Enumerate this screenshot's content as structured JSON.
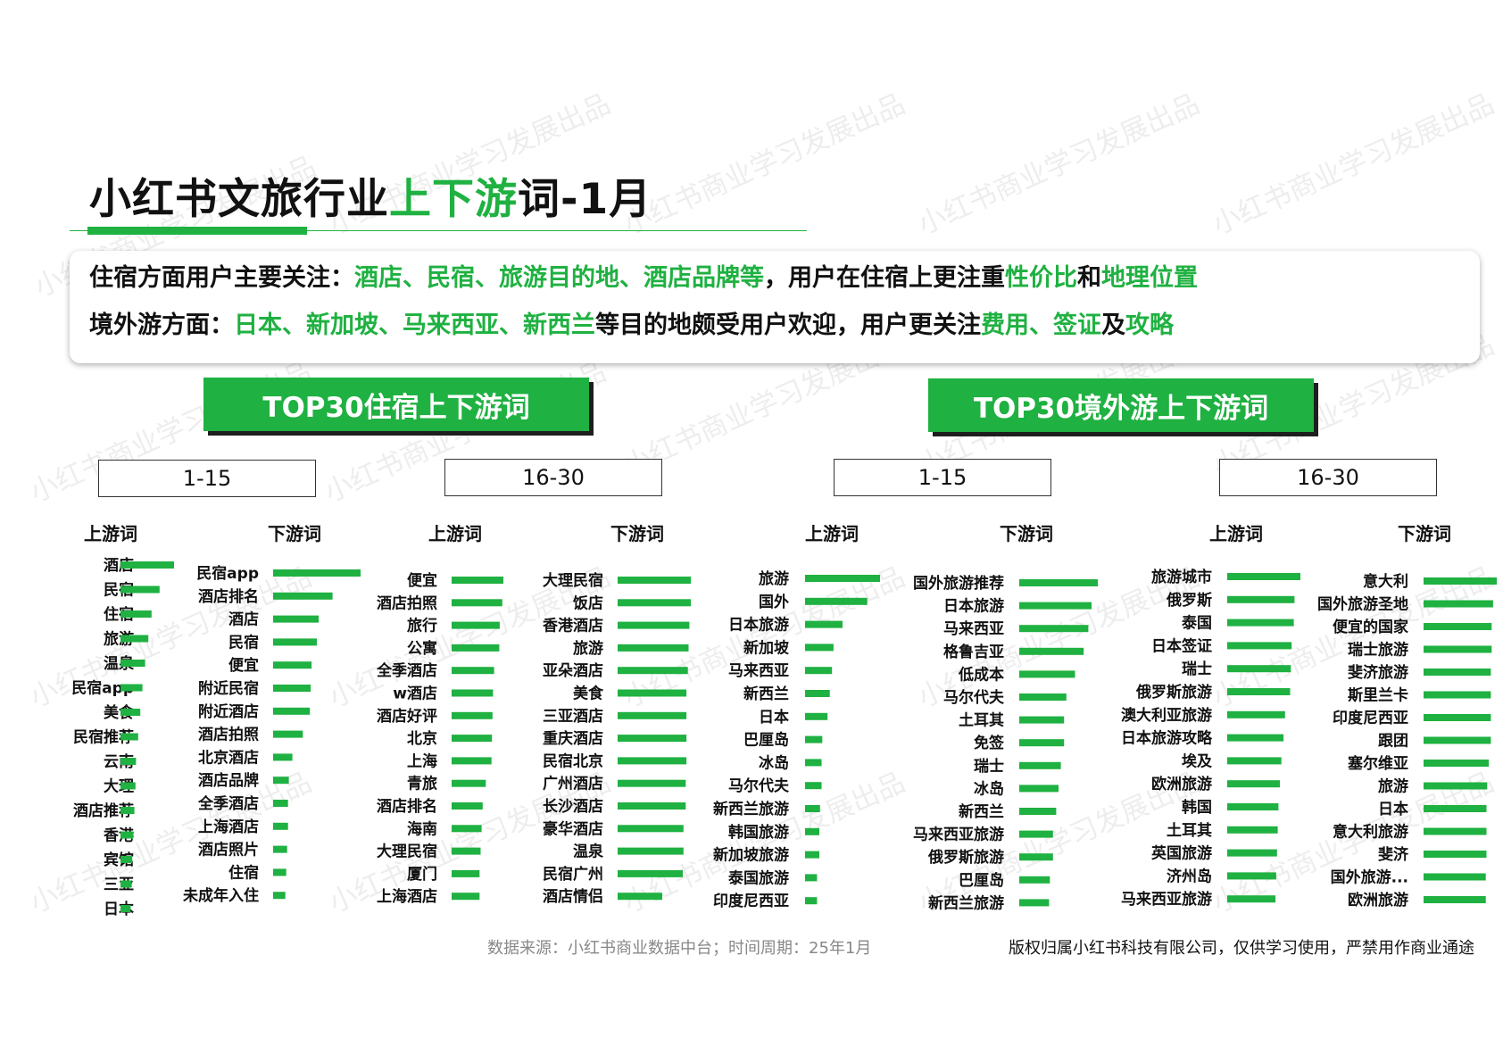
{
  "title": {
    "prefix": "小红书文旅行业",
    "highlight": "上下游",
    "suffix": "词-1月"
  },
  "summary": {
    "line1": [
      {
        "t": "住宿方面用户主要关注：",
        "g": false
      },
      {
        "t": "酒店、民宿、旅游目的地、酒店品牌等",
        "g": true
      },
      {
        "t": "，用户在住宿上更注重",
        "g": false
      },
      {
        "t": "性价比",
        "g": true
      },
      {
        "t": "和",
        "g": false
      },
      {
        "t": "地理位置",
        "g": true
      }
    ],
    "line2": [
      {
        "t": "境外游方面：",
        "g": false
      },
      {
        "t": "日本、新加坡、马来西亚、新西兰",
        "g": true
      },
      {
        "t": "等目的地颇受用户欢迎，用户更关注",
        "g": false
      },
      {
        "t": "费用、签证",
        "g": true
      },
      {
        "t": "及",
        "g": false
      },
      {
        "t": "攻略",
        "g": true
      }
    ]
  },
  "banners": {
    "lodging": "TOP30住宿上下游词",
    "overseas": "TOP30境外游上下游词"
  },
  "ranges": {
    "lodging_a": "1-15",
    "lodging_b": "16-30",
    "overseas_a": "1-15",
    "overseas_b": "16-30"
  },
  "headers": {
    "upstream": "上游词",
    "downstream": "下游词"
  },
  "watermark": "小红书商业学习发展出品",
  "colors": {
    "accent": "#1fb141",
    "bar": "#1fb141"
  },
  "footer": {
    "source": "数据来源：小红书商业数据中台；时间周期：25年1月",
    "copyright": "版权归属小红书科技有限公司，仅供学习使用，严禁用作商业通途"
  },
  "chart_data": [
    {
      "type": "bar",
      "group": "TOP30住宿上下游词",
      "range": "1-15",
      "side": "上游词",
      "categories": [
        "酒店",
        "民宿",
        "住宿",
        "旅游",
        "温泉",
        "民宿app",
        "美食",
        "民宿推荐",
        "云南",
        "大理",
        "酒店推荐",
        "香港",
        "宾馆",
        "三亚",
        "日本"
      ],
      "values": [
        100,
        73,
        58,
        52,
        46,
        41,
        37,
        33,
        29,
        28,
        26,
        24,
        22,
        21,
        19
      ]
    },
    {
      "type": "bar",
      "group": "TOP30住宿上下游词",
      "range": "1-15",
      "side": "下游词",
      "categories": [
        "民宿app",
        "酒店排名",
        "酒店",
        "民宿",
        "便宜",
        "附近民宿",
        "附近酒店",
        "酒店拍照",
        "北京酒店",
        "酒店品牌",
        "全季酒店",
        "上海酒店",
        "酒店照片",
        "住宿",
        "未成年入住"
      ],
      "values": [
        100,
        68,
        52,
        50,
        44,
        43,
        42,
        34,
        22,
        18,
        17,
        17,
        16,
        15,
        14
      ]
    },
    {
      "type": "bar",
      "group": "TOP30住宿上下游词",
      "range": "16-30",
      "side": "上游词",
      "categories": [
        "便宜",
        "酒店拍照",
        "旅行",
        "公寓",
        "全季酒店",
        "w酒店",
        "酒店好评",
        "北京",
        "上海",
        "青旅",
        "酒店排名",
        "海南",
        "大理民宿",
        "厦门",
        "上海酒店"
      ],
      "values": [
        100,
        98,
        93,
        92,
        82,
        80,
        79,
        78,
        77,
        66,
        60,
        58,
        56,
        54,
        54
      ]
    },
    {
      "type": "bar",
      "group": "TOP30住宿上下游词",
      "range": "16-30",
      "side": "下游词",
      "categories": [
        "大理民宿",
        "饭店",
        "香港酒店",
        "旅游",
        "亚朵酒店",
        "美食",
        "三亚酒店",
        "重庆酒店",
        "民宿北京",
        "广州酒店",
        "长沙酒店",
        "豪华酒店",
        "温泉",
        "民宿广州",
        "酒店情侣"
      ],
      "values": [
        100,
        100,
        98,
        97,
        96,
        94,
        94,
        94,
        94,
        93,
        93,
        90,
        90,
        89,
        61
      ]
    },
    {
      "type": "bar",
      "group": "TOP30境外游上下游词",
      "range": "1-15",
      "side": "上游词",
      "categories": [
        "旅游",
        "国外",
        "日本旅游",
        "新加坡",
        "马来西亚",
        "新西兰",
        "日本",
        "巴厘岛",
        "冰岛",
        "马尔代夫",
        "新西兰旅游",
        "韩国旅游",
        "新加坡旅游",
        "泰国旅游",
        "印度尼西亚"
      ],
      "values": [
        100,
        83,
        50,
        38,
        36,
        33,
        30,
        23,
        22,
        22,
        20,
        19,
        19,
        16,
        16
      ]
    },
    {
      "type": "bar",
      "group": "TOP30境外游上下游词",
      "range": "1-15",
      "side": "下游词",
      "categories": [
        "国外旅游推荐",
        "日本旅游",
        "马来西亚",
        "格鲁吉亚",
        "低成本",
        "马尔代夫",
        "土耳其",
        "免签",
        "瑞士",
        "冰岛",
        "新西兰",
        "马来西亚旅游",
        "俄罗斯旅游",
        "巴厘岛",
        "新西兰旅游"
      ],
      "values": [
        100,
        92,
        88,
        82,
        71,
        60,
        57,
        57,
        53,
        50,
        47,
        43,
        43,
        39,
        38
      ]
    },
    {
      "type": "bar",
      "group": "TOP30境外游上下游词",
      "range": "16-30",
      "side": "上游词",
      "categories": [
        "旅游城市",
        "俄罗斯",
        "泰国",
        "日本签证",
        "瑞士",
        "俄罗斯旅游",
        "澳大利亚旅游",
        "日本旅游攻略",
        "埃及",
        "欧洲旅游",
        "韩国",
        "土耳其",
        "英国旅游",
        "济州岛",
        "马来西亚旅游"
      ],
      "values": [
        100,
        92,
        91,
        88,
        87,
        86,
        79,
        77,
        74,
        72,
        70,
        69,
        68,
        67,
        66
      ]
    },
    {
      "type": "bar",
      "group": "TOP30境外游上下游词",
      "range": "16-30",
      "side": "下游词",
      "categories": [
        "意大利",
        "国外旅游圣地",
        "便宜的国家",
        "瑞士旅游",
        "斐济旅游",
        "斯里兰卡",
        "印度尼西亚",
        "跟团",
        "塞尔维亚",
        "旅游",
        "日本",
        "意大利旅游",
        "斐济",
        "国外旅游...",
        "欧洲旅游"
      ],
      "values": [
        100,
        95,
        93,
        93,
        92,
        92,
        92,
        92,
        89,
        87,
        86,
        86,
        86,
        85,
        85
      ]
    }
  ]
}
